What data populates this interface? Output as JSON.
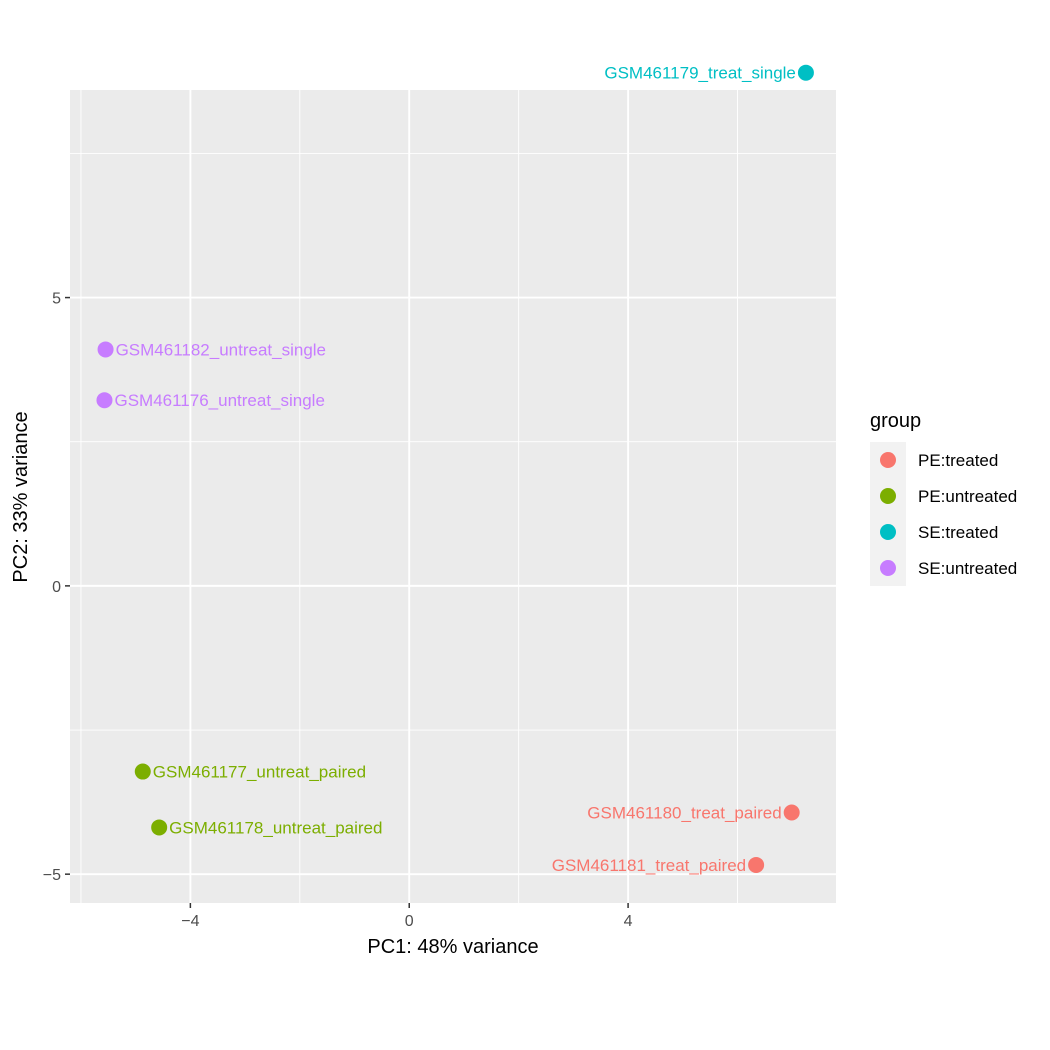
{
  "chart_data": {
    "type": "scatter",
    "xlabel": "PC1: 48% variance",
    "ylabel": "PC2: 33% variance",
    "xlim": [
      -6.2,
      7.8
    ],
    "ylim": [
      -5.5,
      8.6
    ],
    "x_ticks": [
      {
        "value": -4,
        "label": "−4"
      },
      {
        "value": 0,
        "label": "0"
      },
      {
        "value": 4,
        "label": "4"
      }
    ],
    "y_ticks": [
      {
        "value": -5,
        "label": "−5"
      },
      {
        "value": 0,
        "label": "0"
      },
      {
        "value": 5,
        "label": "5"
      }
    ],
    "grid": true,
    "legend": {
      "title": "group",
      "position": "right",
      "entries": [
        {
          "name": "PE:treated",
          "color": "#F8766D"
        },
        {
          "name": "PE:untreated",
          "color": "#7CAE00"
        },
        {
          "name": "SE:treated",
          "color": "#00BFC4"
        },
        {
          "name": "SE:untreated",
          "color": "#C77CFF"
        }
      ]
    },
    "points": [
      {
        "label": "GSM461179_treat_single",
        "group": "SE:treated",
        "x": 7.25,
        "y": 8.9,
        "label_side": "left"
      },
      {
        "label": "GSM461182_untreat_single",
        "group": "SE:untreated",
        "x": -5.55,
        "y": 4.1,
        "label_side": "right"
      },
      {
        "label": "GSM461176_untreat_single",
        "group": "SE:untreated",
        "x": -5.57,
        "y": 3.22,
        "label_side": "right"
      },
      {
        "label": "GSM461177_untreat_paired",
        "group": "PE:untreated",
        "x": -4.87,
        "y": -3.22,
        "label_side": "right"
      },
      {
        "label": "GSM461178_untreat_paired",
        "group": "PE:untreated",
        "x": -4.57,
        "y": -4.19,
        "label_side": "right"
      },
      {
        "label": "GSM461180_treat_paired",
        "group": "PE:treated",
        "x": 6.99,
        "y": -3.93,
        "label_side": "left"
      },
      {
        "label": "GSM461181_treat_paired",
        "group": "PE:treated",
        "x": 6.34,
        "y": -4.84,
        "label_side": "left"
      }
    ]
  }
}
